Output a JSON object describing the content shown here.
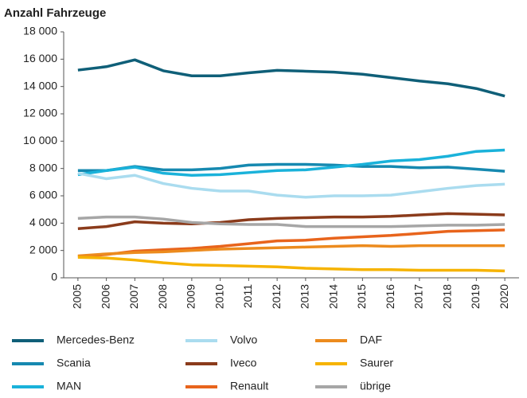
{
  "chart_data": {
    "type": "line",
    "title": "Anzahl Fahrzeuge",
    "x": [
      "2005",
      "2006",
      "2007",
      "2008",
      "2009",
      "2010",
      "2011",
      "2012",
      "2013",
      "2014",
      "2015",
      "2016",
      "2017",
      "2018",
      "2019",
      "2020"
    ],
    "ylim": [
      0,
      18000
    ],
    "yticks": [
      0,
      {
        "value": 2000,
        "label": "2 000"
      },
      {
        "value": 4000,
        "label": "4 000"
      },
      {
        "value": 6000,
        "label": "6 000"
      },
      {
        "value": 8000,
        "label": "8 000"
      },
      {
        "value": 10000,
        "label": "10 000"
      },
      {
        "value": 12000,
        "label": "12 000"
      },
      {
        "value": 14000,
        "label": "14 000"
      },
      {
        "value": 16000,
        "label": "16 000"
      },
      {
        "value": 18000,
        "label": "18 000"
      }
    ],
    "grid": false,
    "series": [
      {
        "name": "Mercedes-Benz",
        "color": "#0f5f78",
        "values": [
          15200,
          15450,
          15950,
          15150,
          14780,
          14780,
          15000,
          15180,
          15120,
          15050,
          14900,
          14650,
          14400,
          14200,
          13850,
          13300
        ]
      },
      {
        "name": "Scania",
        "color": "#1689b0",
        "values": [
          7850,
          7850,
          8150,
          7900,
          7900,
          8000,
          8250,
          8300,
          8300,
          8250,
          8150,
          8150,
          8050,
          8100,
          7950,
          7800
        ]
      },
      {
        "name": "MAN",
        "color": "#1ab2da",
        "values": [
          7550,
          7850,
          8100,
          7650,
          7500,
          7550,
          7700,
          7850,
          7900,
          8100,
          8300,
          8550,
          8650,
          8900,
          9250,
          9350
        ]
      },
      {
        "name": "Volvo",
        "color": "#aadcef",
        "values": [
          7650,
          7250,
          7500,
          6900,
          6550,
          6350,
          6350,
          6050,
          5900,
          6000,
          6000,
          6050,
          6300,
          6550,
          6750,
          6850
        ]
      },
      {
        "name": "Iveco",
        "color": "#8b3b1b",
        "values": [
          3600,
          3750,
          4100,
          4000,
          3950,
          4050,
          4250,
          4350,
          4400,
          4450,
          4450,
          4500,
          4600,
          4700,
          4650,
          4600
        ]
      },
      {
        "name": "Renault",
        "color": "#e8641c",
        "values": [
          1550,
          1700,
          1950,
          2050,
          2150,
          2300,
          2500,
          2700,
          2750,
          2900,
          3000,
          3100,
          3250,
          3400,
          3450,
          3500
        ]
      },
      {
        "name": "DAF",
        "color": "#ec8b1e",
        "values": [
          1600,
          1750,
          1850,
          1900,
          2000,
          2100,
          2150,
          2200,
          2250,
          2300,
          2350,
          2300,
          2350,
          2350,
          2350,
          2350
        ]
      },
      {
        "name": "Saurer",
        "color": "#f6b300",
        "values": [
          1500,
          1450,
          1300,
          1100,
          950,
          900,
          850,
          800,
          700,
          650,
          600,
          600,
          550,
          550,
          550,
          500
        ]
      },
      {
        "name": "übrige",
        "color": "#a6a6a6",
        "values": [
          4350,
          4450,
          4450,
          4300,
          4050,
          3950,
          3900,
          3900,
          3750,
          3750,
          3750,
          3750,
          3800,
          3850,
          3850,
          3900
        ]
      }
    ]
  }
}
